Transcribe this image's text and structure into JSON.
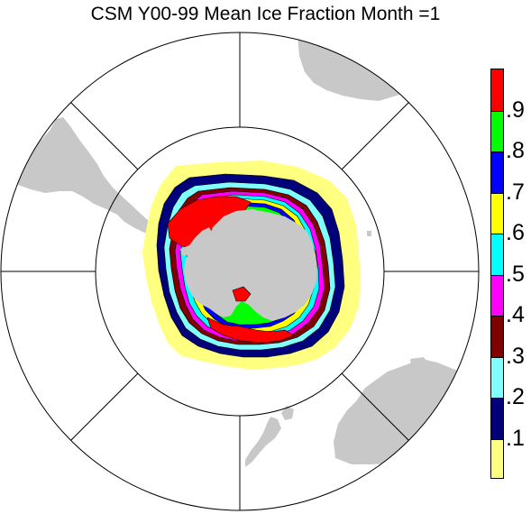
{
  "title": "CSM Y00-99 Mean Ice Fraction Month =1",
  "colors": {
    "land": "#c8c8c8",
    "bins": [
      "#ffff80",
      "#00007a",
      "#80ffff",
      "#800000",
      "#ff00ff",
      "#00ffff",
      "#ffff00",
      "#0000ff",
      "#00ff00",
      "#ff0000"
    ],
    "outline": "#000000"
  },
  "legend": {
    "labels": [
      ".1",
      ".2",
      ".3",
      ".4",
      ".5",
      ".6",
      ".7",
      ".8",
      ".9"
    ]
  },
  "map": {
    "projection": "south-polar-stereographic",
    "variable": "ice fraction",
    "month": 1
  }
}
